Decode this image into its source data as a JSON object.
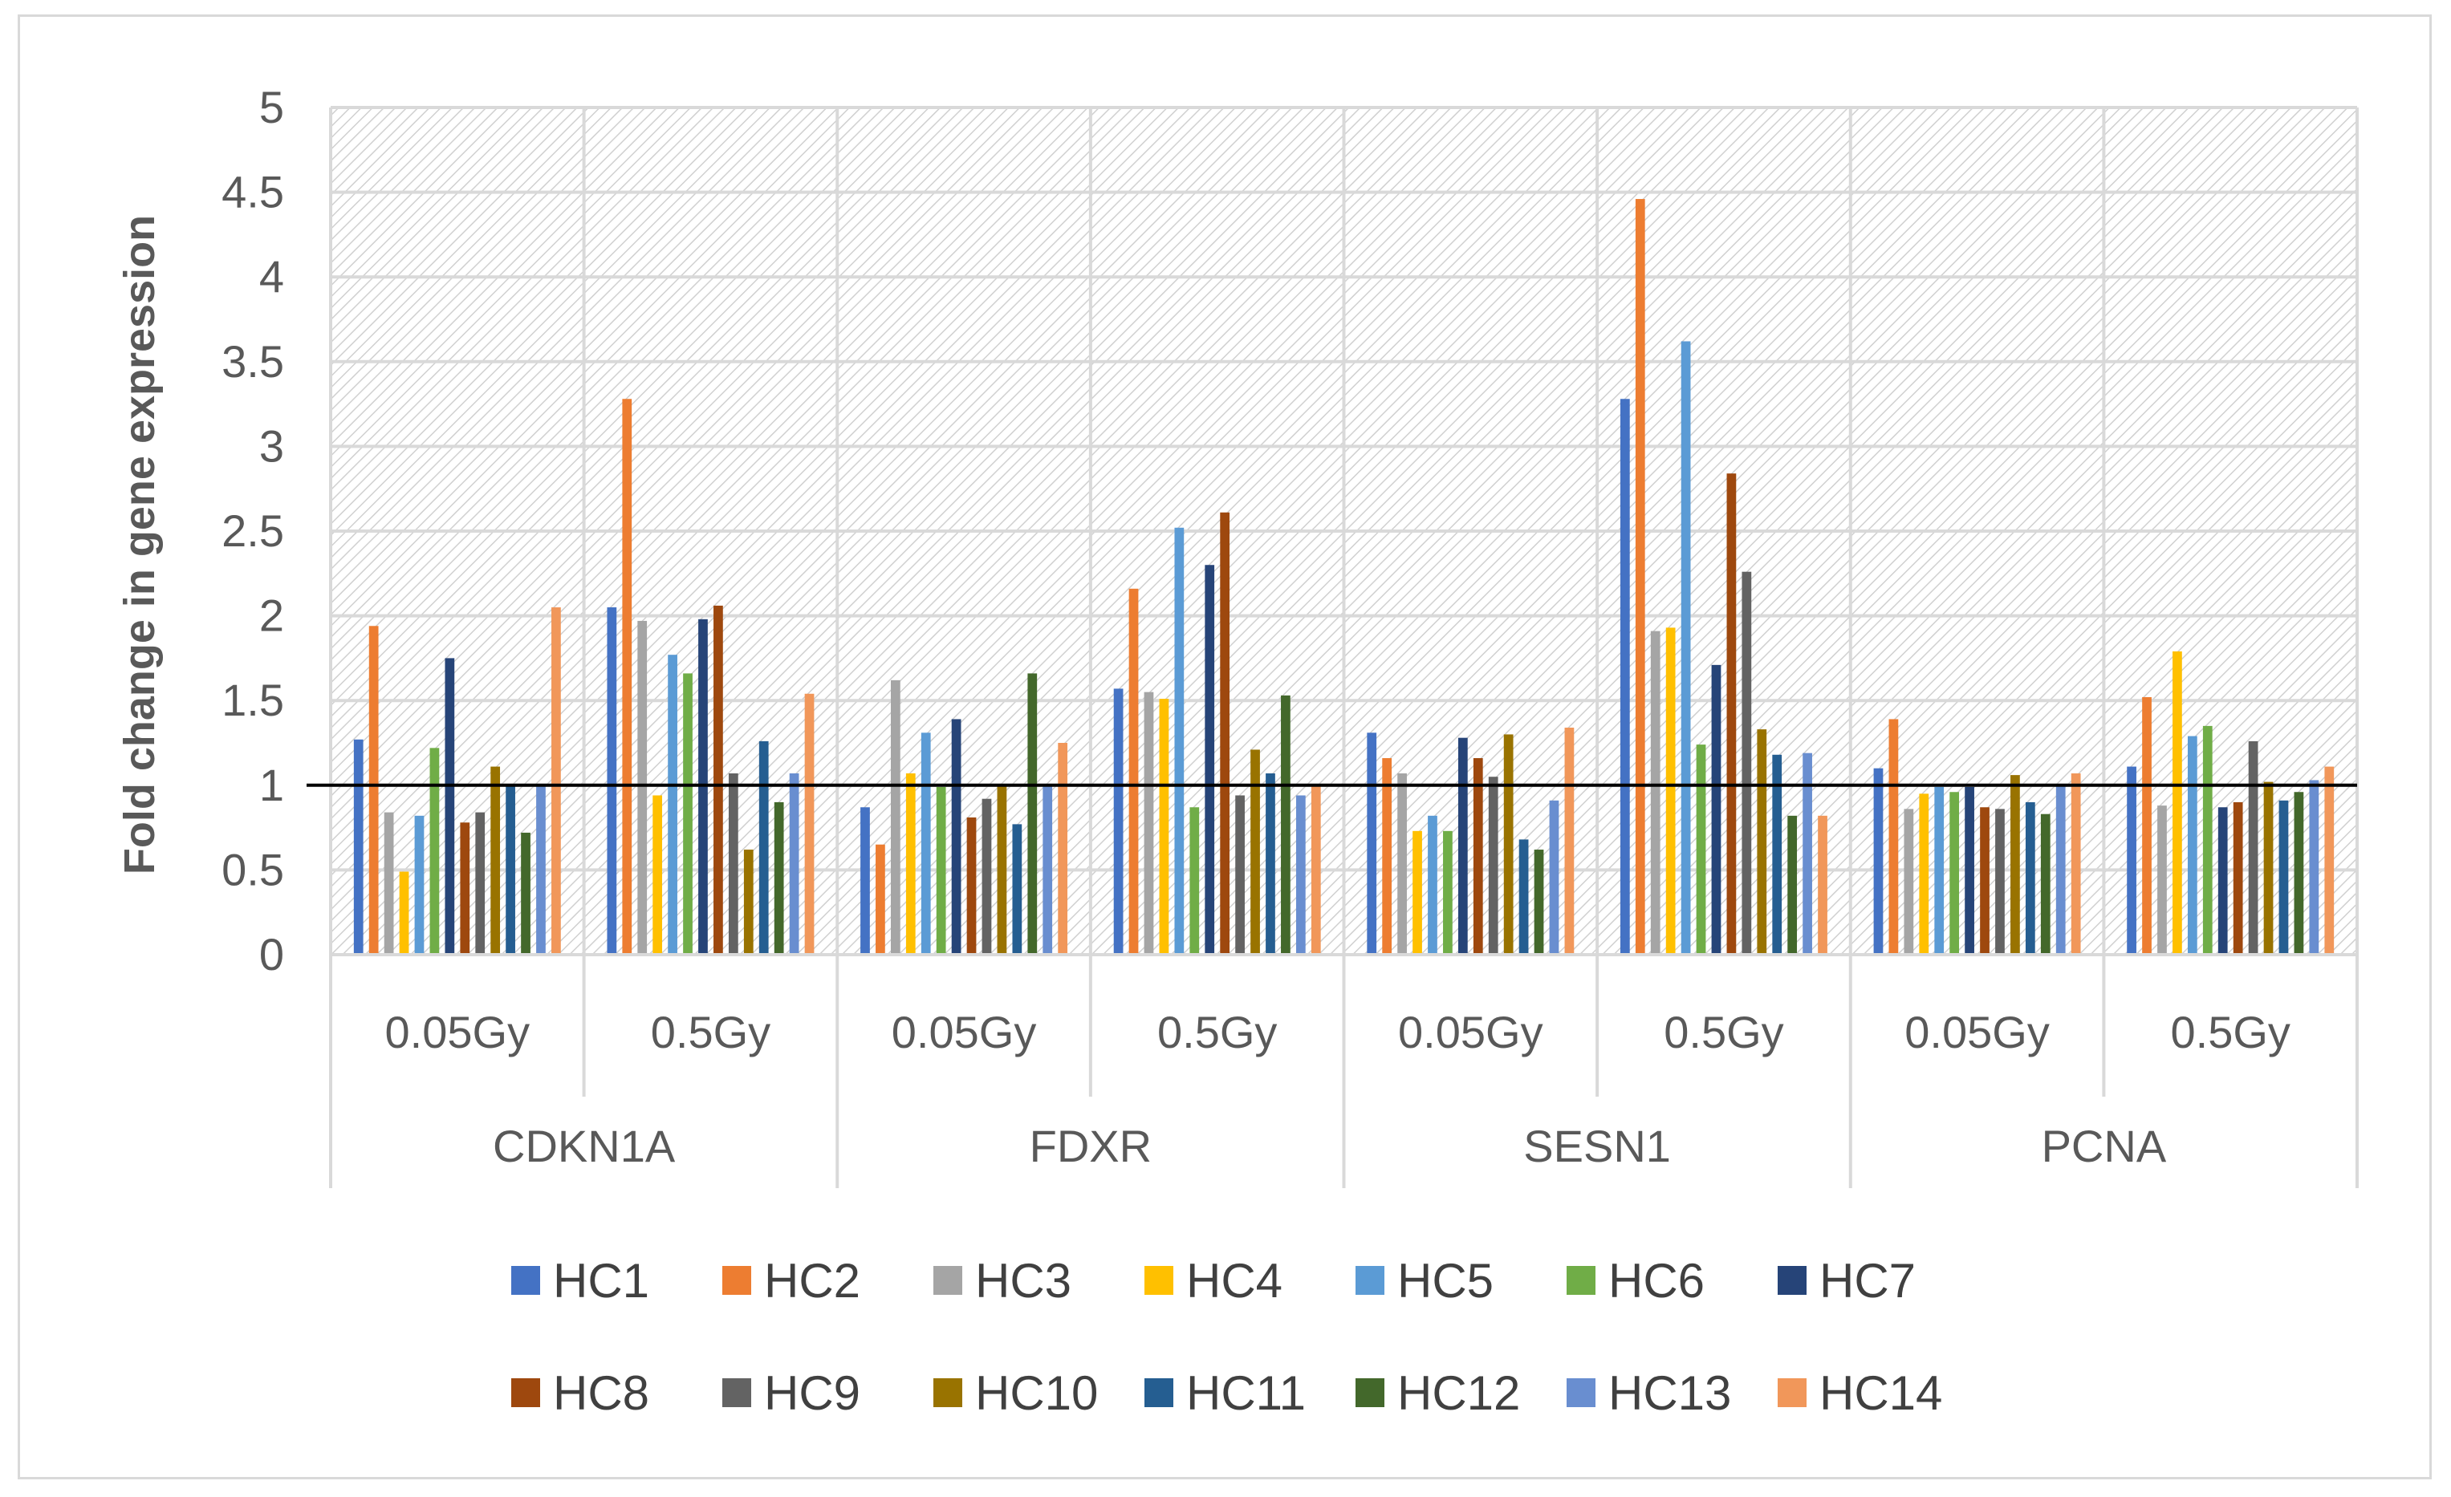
{
  "chart_data": {
    "type": "bar",
    "title": "",
    "xlabel": "",
    "ylabel": "Fold change in gene expression",
    "ylim": [
      0,
      5
    ],
    "yticks": [
      "0",
      "0.5",
      "1",
      "1.5",
      "2",
      "2.5",
      "3",
      "3.5",
      "4",
      "4.5",
      "5"
    ],
    "reference_line": 1,
    "grid": true,
    "legend_position": "bottom",
    "groups": [
      {
        "gene": "CDKN1A",
        "doses": [
          "0.05Gy",
          "0.5Gy"
        ]
      },
      {
        "gene": "FDXR",
        "doses": [
          "0.05Gy",
          "0.5Gy"
        ]
      },
      {
        "gene": "SESN1",
        "doses": [
          "0.05Gy",
          "0.5Gy"
        ]
      },
      {
        "gene": "PCNA",
        "doses": [
          "0.05Gy",
          "0.5Gy"
        ]
      }
    ],
    "categories": [
      "CDKN1A 0.05Gy",
      "CDKN1A 0.5Gy",
      "FDXR 0.05Gy",
      "FDXR 0.5Gy",
      "SESN1 0.05Gy",
      "SESN1 0.5Gy",
      "PCNA 0.05Gy",
      "PCNA 0.5Gy"
    ],
    "series": [
      {
        "name": "HC1",
        "color": "#4472c4",
        "values": [
          1.27,
          2.05,
          0.87,
          1.57,
          1.31,
          3.28,
          1.1,
          1.11
        ]
      },
      {
        "name": "HC2",
        "color": "#ed7d31",
        "values": [
          1.94,
          3.28,
          0.65,
          2.16,
          1.16,
          4.46,
          1.39,
          1.52
        ]
      },
      {
        "name": "HC3",
        "color": "#a5a5a5",
        "values": [
          0.84,
          1.97,
          1.62,
          1.55,
          1.07,
          1.91,
          0.86,
          0.88
        ]
      },
      {
        "name": "HC4",
        "color": "#ffc000",
        "values": [
          0.49,
          0.94,
          1.07,
          1.51,
          0.73,
          1.93,
          0.95,
          1.79
        ]
      },
      {
        "name": "HC5",
        "color": "#5b9bd5",
        "values": [
          0.82,
          1.77,
          1.31,
          2.52,
          0.82,
          3.62,
          0.99,
          1.29
        ]
      },
      {
        "name": "HC6",
        "color": "#70ad47",
        "values": [
          1.22,
          1.66,
          0.99,
          0.87,
          0.73,
          1.24,
          0.96,
          1.35
        ]
      },
      {
        "name": "HC7",
        "color": "#264478",
        "values": [
          1.75,
          1.98,
          1.39,
          2.3,
          1.28,
          1.71,
          0.99,
          0.87
        ]
      },
      {
        "name": "HC8",
        "color": "#9e480e",
        "values": [
          0.78,
          2.06,
          0.81,
          2.61,
          1.16,
          2.84,
          0.87,
          0.9
        ]
      },
      {
        "name": "HC9",
        "color": "#636363",
        "values": [
          0.84,
          1.07,
          0.92,
          0.94,
          1.05,
          2.26,
          0.86,
          1.26
        ]
      },
      {
        "name": "HC10",
        "color": "#997300",
        "values": [
          1.11,
          0.62,
          1.0,
          1.21,
          1.3,
          1.33,
          1.06,
          1.02
        ]
      },
      {
        "name": "HC11",
        "color": "#255e91",
        "values": [
          1.0,
          1.26,
          0.77,
          1.07,
          0.68,
          1.18,
          0.9,
          0.91
        ]
      },
      {
        "name": "HC12",
        "color": "#43682b",
        "values": [
          0.72,
          0.9,
          1.66,
          1.53,
          0.62,
          0.82,
          0.83,
          0.96
        ]
      },
      {
        "name": "HC13",
        "color": "#698ed0",
        "values": [
          1.0,
          1.07,
          1.0,
          0.94,
          0.91,
          1.19,
          1.0,
          1.03
        ]
      },
      {
        "name": "HC14",
        "color": "#f1975a",
        "values": [
          2.05,
          1.54,
          1.25,
          1.0,
          1.34,
          0.82,
          1.07,
          1.11
        ]
      }
    ]
  }
}
